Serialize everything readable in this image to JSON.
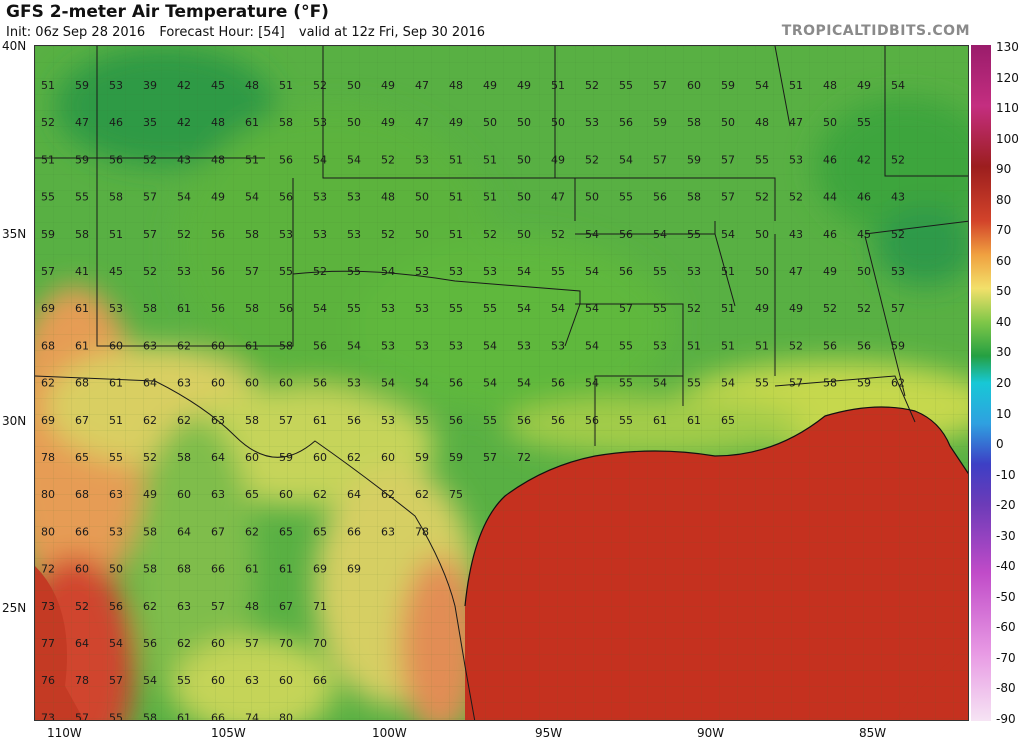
{
  "header": {
    "title": "GFS 2-meter Air Temperature (°F)",
    "init": "Init: 06z Sep 28 2016",
    "forecast_hour": "Forecast Hour: [54]",
    "valid": "valid at 12z Fri, Sep 30 2016",
    "brand": "TROPICALTIDBITS.COM"
  },
  "lat_labels": [
    "40N",
    "35N",
    "30N",
    "25N"
  ],
  "lon_labels": [
    "110W",
    "105W",
    "100W",
    "95W",
    "90W",
    "85W"
  ],
  "colorbar": {
    "labels": [
      "130",
      "120",
      "110",
      "100",
      "90",
      "80",
      "70",
      "60",
      "50",
      "40",
      "30",
      "20",
      "10",
      "0",
      "-10",
      "-20",
      "-30",
      "-40",
      "-50",
      "-60",
      "-70",
      "-80",
      "-90"
    ]
  },
  "colors": {
    "ocean": "#c7301e",
    "land_green": "#4aa63a",
    "land_yellow": "#d4dc5c",
    "land_orange": "#e0854a"
  },
  "station_values": [
    [
      "51",
      "59",
      "53",
      "39",
      "42",
      "45",
      "48",
      "51",
      "52",
      "50",
      "49",
      "47",
      "48",
      "49",
      "49",
      "51",
      "52",
      "55",
      "57",
      "60",
      "59",
      "54",
      "51",
      "48",
      "49",
      "54"
    ],
    [
      "52",
      "47",
      "46",
      "35",
      "42",
      "48",
      "61",
      "58",
      "53",
      "50",
      "49",
      "47",
      "49",
      "50",
      "50",
      "50",
      "53",
      "56",
      "59",
      "58",
      "50",
      "48",
      "47",
      "50",
      "55"
    ],
    [
      "51",
      "59",
      "56",
      "52",
      "43",
      "48",
      "51",
      "56",
      "54",
      "54",
      "52",
      "53",
      "51",
      "51",
      "50",
      "49",
      "52",
      "54",
      "57",
      "59",
      "57",
      "55",
      "53",
      "46",
      "42",
      "52"
    ],
    [
      "55",
      "55",
      "58",
      "57",
      "54",
      "49",
      "54",
      "56",
      "53",
      "53",
      "48",
      "50",
      "51",
      "51",
      "50",
      "47",
      "50",
      "55",
      "56",
      "58",
      "57",
      "52",
      "52",
      "44",
      "46",
      "43"
    ],
    [
      "59",
      "58",
      "51",
      "57",
      "52",
      "56",
      "58",
      "53",
      "53",
      "53",
      "52",
      "50",
      "51",
      "52",
      "50",
      "52",
      "54",
      "56",
      "54",
      "55",
      "54",
      "50",
      "43",
      "46",
      "45",
      "52"
    ],
    [
      "57",
      "41",
      "45",
      "52",
      "53",
      "56",
      "57",
      "55",
      "52",
      "55",
      "54",
      "53",
      "53",
      "53",
      "54",
      "55",
      "54",
      "56",
      "55",
      "53",
      "51",
      "50",
      "47",
      "49",
      "50",
      "53"
    ],
    [
      "69",
      "61",
      "53",
      "58",
      "61",
      "56",
      "58",
      "56",
      "54",
      "55",
      "53",
      "53",
      "55",
      "55",
      "54",
      "54",
      "54",
      "57",
      "55",
      "52",
      "51",
      "49",
      "49",
      "52",
      "52",
      "57"
    ],
    [
      "68",
      "61",
      "60",
      "63",
      "62",
      "60",
      "61",
      "58",
      "56",
      "54",
      "53",
      "53",
      "53",
      "54",
      "53",
      "53",
      "54",
      "55",
      "53",
      "51",
      "51",
      "51",
      "52",
      "56",
      "56",
      "59"
    ],
    [
      "62",
      "68",
      "61",
      "64",
      "63",
      "60",
      "60",
      "60",
      "56",
      "53",
      "54",
      "54",
      "56",
      "54",
      "54",
      "56",
      "54",
      "55",
      "54",
      "55",
      "54",
      "55",
      "57",
      "58",
      "59",
      "62"
    ],
    [
      "69",
      "67",
      "51",
      "62",
      "62",
      "63",
      "58",
      "57",
      "61",
      "56",
      "53",
      "55",
      "56",
      "55",
      "56",
      "56",
      "56",
      "55",
      "61",
      "61",
      "65"
    ],
    [
      "78",
      "65",
      "55",
      "52",
      "58",
      "64",
      "60",
      "59",
      "60",
      "62",
      "60",
      "59",
      "59",
      "57",
      "72"
    ],
    [
      "80",
      "68",
      "63",
      "49",
      "60",
      "63",
      "65",
      "60",
      "62",
      "64",
      "62",
      "62",
      "75"
    ],
    [
      "80",
      "66",
      "53",
      "58",
      "64",
      "67",
      "62",
      "65",
      "65",
      "66",
      "63",
      "78"
    ],
    [
      "72",
      "60",
      "50",
      "58",
      "68",
      "66",
      "61",
      "61",
      "69",
      "69"
    ],
    [
      "73",
      "52",
      "56",
      "62",
      "63",
      "57",
      "48",
      "67",
      "71"
    ],
    [
      "77",
      "64",
      "54",
      "56",
      "62",
      "60",
      "57",
      "70",
      "70"
    ],
    [
      "76",
      "78",
      "57",
      "54",
      "55",
      "60",
      "63",
      "60",
      "66"
    ],
    [
      "73",
      "57",
      "55",
      "58",
      "61",
      "66",
      "74",
      "80"
    ]
  ]
}
